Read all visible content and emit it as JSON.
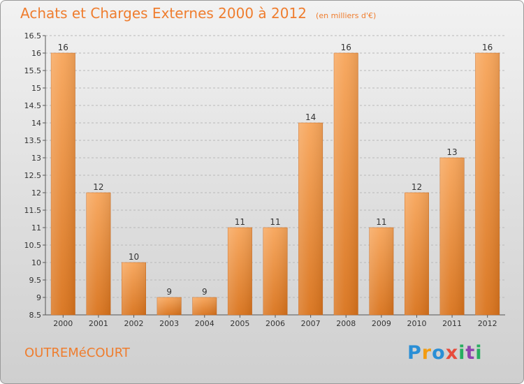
{
  "title": "Achats et Charges Externes 2000 à 2012",
  "subtitle": "(en milliers d'€)",
  "commune": "OUTREMéCOURT",
  "brand": {
    "letters": [
      "P",
      "r",
      "o",
      "x",
      "i",
      "t",
      "i"
    ],
    "colors": [
      "#2a8fd6",
      "#f39c12",
      "#2a8fd6",
      "#e74c3c",
      "#27ae60",
      "#8e44ad",
      "#27ae60"
    ]
  },
  "colors": {
    "bar_light": "#f7a55a",
    "bar_dark": "#d9731c",
    "accent": "#ef7d2e"
  },
  "chart_data": {
    "type": "bar",
    "title": "Achats et Charges Externes 2000 à 2012",
    "subtitle": "(en milliers d'€)",
    "categories": [
      "2000",
      "2001",
      "2002",
      "2003",
      "2004",
      "2005",
      "2006",
      "2007",
      "2008",
      "2009",
      "2010",
      "2011",
      "2012"
    ],
    "values": [
      16,
      12,
      10,
      9,
      9,
      11,
      11,
      14,
      16,
      11,
      12,
      13,
      16
    ],
    "ylim": [
      8.5,
      16.5
    ],
    "yticks": [
      8.5,
      9,
      9.5,
      10,
      10.5,
      11,
      11.5,
      12,
      12.5,
      13,
      13.5,
      14,
      14.5,
      15,
      15.5,
      16,
      16.5
    ],
    "ytick_labels": [
      "8.5",
      "9",
      "9.5",
      "10",
      "10.5",
      "11",
      "11.5",
      "12",
      "12.5",
      "13",
      "13.5",
      "14",
      "14.5",
      "15",
      "15.5",
      "16",
      "16.5"
    ],
    "grid": true,
    "xlabel": "",
    "ylabel": ""
  }
}
